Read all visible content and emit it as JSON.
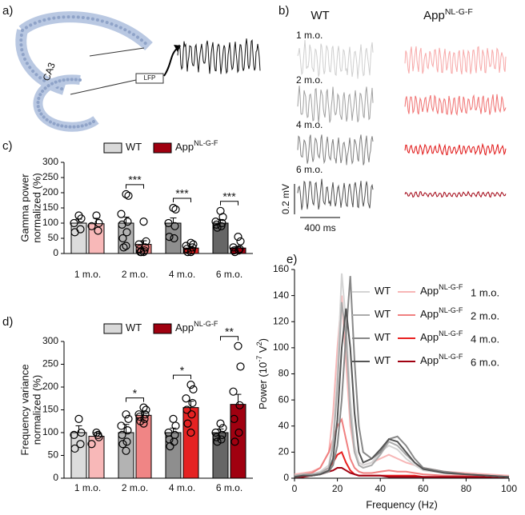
{
  "panel_labels": [
    "a)",
    "b)",
    "c)",
    "d)",
    "e)"
  ],
  "panel_a": {
    "region_label": "CA3",
    "electrode_label": "LFP"
  },
  "panel_b": {
    "columns": [
      {
        "name": "WT"
      },
      {
        "name": "App",
        "superscript": "NL-G-F"
      }
    ],
    "rows": [
      "1 m.o.",
      "2 m.o.",
      "4 m.o.",
      "6 m.o."
    ],
    "scale_y": "0.2 mV",
    "scale_x": "400 ms"
  },
  "chart_data": [
    {
      "type": "bar",
      "ylabel": [
        "Gamma power",
        "normalized (%)"
      ],
      "categories": [
        "1 m.o.",
        "2 m.o.",
        "4 m.o.",
        "6 m.o."
      ],
      "ylim": [
        0,
        300
      ],
      "yticks": [
        0,
        50,
        100,
        150,
        200,
        250,
        300
      ],
      "series": [
        {
          "name": "WT",
          "color": "#d9d9d9",
          "colors": [
            "#dcdcdc",
            "#b3b3b3",
            "#8e8e8e",
            "#666666"
          ],
          "values": [
            100,
            100,
            100,
            100
          ],
          "errors": [
            13,
            20,
            17,
            12
          ],
          "points": [
            [
              125,
              115,
              100,
              80,
              70
            ],
            [
              195,
              190,
              130,
              105,
              95,
              70,
              50,
              25,
              20
            ],
            [
              150,
              145,
              100,
              90,
              55,
              50
            ],
            [
              140,
              120,
              105,
              100,
              95,
              90,
              85
            ]
          ]
        },
        {
          "name": "App",
          "superscript": "NL-G-F",
          "color": "#a00010",
          "colors": [
            "#f8b8b8",
            "#f08585",
            "#e52222",
            "#a00010"
          ],
          "values": [
            98,
            30,
            18,
            18
          ],
          "errors": [
            18,
            12,
            5,
            5
          ],
          "points": [
            [
              125,
              100,
              90,
              75
            ],
            [
              105,
              40,
              30,
              20,
              15,
              10,
              5,
              5,
              5
            ],
            [
              35,
              30,
              25,
              20,
              15,
              10,
              5,
              5
            ],
            [
              55,
              40,
              20,
              15,
              10,
              10,
              5
            ]
          ]
        }
      ],
      "significance": [
        null,
        "***",
        "***",
        "***"
      ]
    },
    {
      "type": "bar",
      "ylabel": [
        "Frequency variance",
        "normalized (%)"
      ],
      "categories": [
        "1 m.o.",
        "2 m.o.",
        "4 m.o.",
        "6 m.o."
      ],
      "ylim": [
        0,
        300
      ],
      "yticks": [
        0,
        50,
        100,
        150,
        200,
        250,
        300
      ],
      "series": [
        {
          "name": "WT",
          "color": "#d9d9d9",
          "colors": [
            "#dcdcdc",
            "#b3b3b3",
            "#8e8e8e",
            "#666666"
          ],
          "values": [
            100,
            100,
            100,
            100
          ],
          "errors": [
            15,
            18,
            10,
            8
          ],
          "points": [
            [
              130,
              100,
              95,
              75,
              65
            ],
            [
              140,
              130,
              115,
              105,
              95,
              80,
              75,
              60
            ],
            [
              130,
              115,
              100,
              95,
              85,
              80,
              70
            ],
            [
              120,
              110,
              100,
              95,
              90,
              85,
              80
            ]
          ]
        },
        {
          "name": "App",
          "superscript": "NL-G-F",
          "color": "#a00010",
          "colors": [
            "#f8b8b8",
            "#f08585",
            "#e52222",
            "#a00010"
          ],
          "values": [
            92,
            138,
            155,
            162
          ],
          "errors": [
            8,
            8,
            14,
            22
          ],
          "points": [
            [
              100,
              90,
              75,
              95
            ],
            [
              155,
              150,
              140,
              140,
              135,
              130,
              125,
              120
            ],
            [
              205,
              195,
              175,
              165,
              150,
              140,
              120,
              100
            ],
            [
              290,
              245,
              190,
              160,
              130,
              100,
              80
            ]
          ]
        }
      ],
      "significance": [
        null,
        "*",
        "*",
        "**"
      ]
    },
    {
      "type": "line",
      "xlabel": "Frequency (Hz)",
      "ylabel": [
        {
          "text": "Power (10"
        },
        {
          "text": "-7",
          "sup": true
        },
        {
          "text": " V"
        },
        {
          "text": "2",
          "sup": true
        },
        {
          "text": ")"
        }
      ],
      "x": [
        0,
        4,
        8,
        12,
        16,
        18,
        20,
        22,
        24,
        26,
        28,
        30,
        32,
        36,
        40,
        44,
        48,
        52,
        56,
        60,
        70,
        80,
        90,
        100
      ],
      "xlim": [
        0,
        100
      ],
      "xticks": [
        0,
        20,
        40,
        60,
        80,
        100
      ],
      "ylim": [
        0,
        160
      ],
      "yticks": [
        0,
        20,
        40,
        60,
        80,
        100,
        120,
        140,
        160
      ],
      "legend_labels": [
        "1 m.o.",
        "2 m.o.",
        "4 m.o.",
        "6 m.o."
      ],
      "series": [
        {
          "name": "WT",
          "color": "#d4d4d4",
          "values": [
            2,
            3,
            3,
            5,
            10,
            30,
            80,
            157,
            120,
            60,
            25,
            12,
            10,
            12,
            20,
            25,
            22,
            15,
            10,
            6,
            4,
            3,
            2,
            1
          ]
        },
        {
          "name": "WT",
          "color": "#ababab",
          "values": [
            2,
            3,
            3,
            4,
            8,
            25,
            70,
            135,
            110,
            50,
            20,
            10,
            8,
            10,
            18,
            28,
            25,
            18,
            12,
            7,
            4,
            3,
            2,
            1
          ]
        },
        {
          "name": "WT",
          "color": "#888888",
          "values": [
            1,
            2,
            2,
            3,
            5,
            10,
            25,
            60,
            110,
            155,
            90,
            40,
            20,
            15,
            20,
            30,
            32,
            25,
            15,
            8,
            5,
            3,
            2,
            1
          ]
        },
        {
          "name": "WT",
          "color": "#555555",
          "values": [
            1,
            2,
            2,
            3,
            6,
            15,
            45,
            100,
            130,
            100,
            50,
            20,
            12,
            15,
            22,
            30,
            28,
            20,
            12,
            7,
            4,
            3,
            2,
            1
          ]
        },
        {
          "name": "App",
          "superscript": "NL-G-F",
          "color": "#f7b6b6",
          "values": [
            3,
            4,
            5,
            8,
            20,
            50,
            100,
            140,
            90,
            40,
            20,
            12,
            10,
            12,
            15,
            18,
            15,
            12,
            10,
            8,
            5,
            4,
            3,
            2
          ]
        },
        {
          "name": "App",
          "superscript": "NL-G-F",
          "color": "#f08080",
          "values": [
            2,
            3,
            4,
            8,
            20,
            30,
            40,
            45,
            30,
            15,
            8,
            5,
            4,
            4,
            5,
            6,
            5,
            5,
            4,
            3,
            2,
            2,
            1,
            1
          ]
        },
        {
          "name": "App",
          "superscript": "NL-G-F",
          "color": "#e82020",
          "values": [
            1,
            2,
            2,
            4,
            8,
            12,
            18,
            20,
            12,
            6,
            3,
            2,
            2,
            2,
            2,
            2,
            2,
            2,
            2,
            1,
            1,
            1,
            1,
            1
          ]
        },
        {
          "name": "App",
          "superscript": "NL-G-F",
          "color": "#a00010",
          "values": [
            1,
            1,
            2,
            3,
            5,
            6,
            8,
            8,
            6,
            4,
            3,
            2,
            2,
            2,
            2,
            1,
            1,
            1,
            1,
            1,
            1,
            1,
            1,
            1
          ]
        }
      ]
    }
  ]
}
